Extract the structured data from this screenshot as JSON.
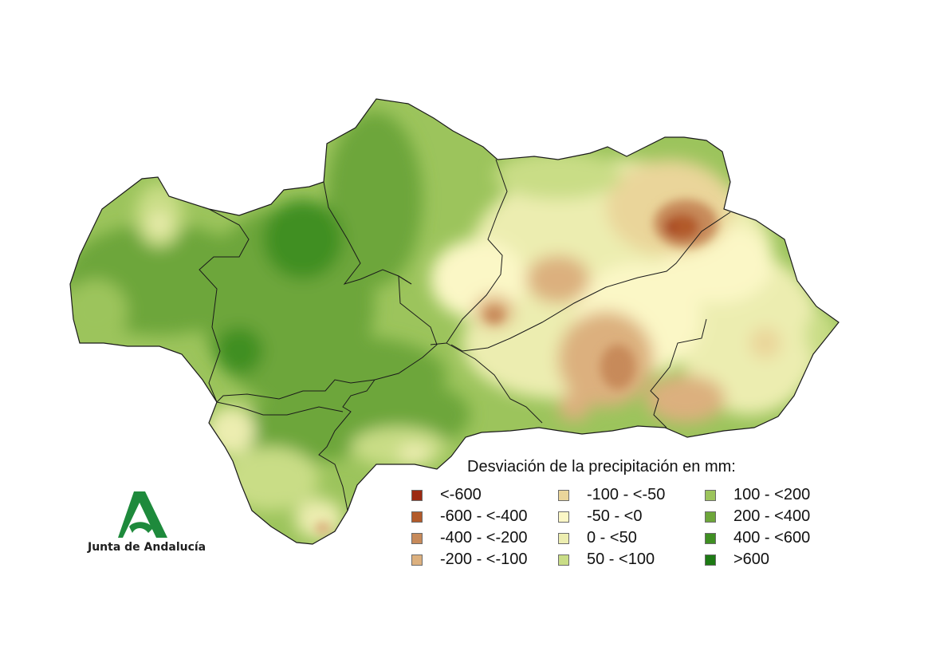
{
  "map": {
    "region": "Andalucía"
  },
  "legend": {
    "title": "Desviación de la precipitación en mm:",
    "items": [
      {
        "label": "<-600",
        "color": "#9c2a12"
      },
      {
        "label": "-600 - <-400",
        "color": "#b25a2a"
      },
      {
        "label": "-400 - <-200",
        "color": "#c78a5a"
      },
      {
        "label": "-200 - <-100",
        "color": "#dcb07e"
      },
      {
        "label": "-100 - <-50",
        "color": "#ead59a"
      },
      {
        "label": "-50 - <0",
        "color": "#fbf7c6"
      },
      {
        "label": "0 - <50",
        "color": "#ecedb0"
      },
      {
        "label": "50 - <100",
        "color": "#c9dd86"
      },
      {
        "label": "100 - <200",
        "color": "#9cc45c"
      },
      {
        "label": "200 - <400",
        "color": "#6da63a"
      },
      {
        "label": "400 - <600",
        "color": "#3f8f22"
      },
      {
        "label": ">600",
        "color": "#1d7a14"
      }
    ]
  },
  "logo": {
    "text": "Junta de Andalucía",
    "color": "#1e8a3c"
  }
}
